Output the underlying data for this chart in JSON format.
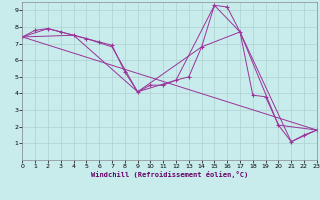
{
  "xlabel": "Windchill (Refroidissement éolien,°C)",
  "bg_color": "#c8ecec",
  "grid_color": "#b0d0d0",
  "line_color": "#993399",
  "xlim": [
    0,
    23
  ],
  "ylim": [
    0,
    9.5
  ],
  "xticks": [
    0,
    1,
    2,
    3,
    4,
    5,
    6,
    7,
    8,
    9,
    10,
    11,
    12,
    13,
    14,
    15,
    16,
    17,
    18,
    19,
    20,
    21,
    22,
    23
  ],
  "yticks": [
    1,
    2,
    3,
    4,
    5,
    6,
    7,
    8,
    9
  ],
  "series": [
    [
      0,
      7.4
    ],
    [
      1,
      7.8
    ],
    [
      2,
      7.9
    ],
    [
      3,
      7.7
    ],
    [
      4,
      7.5
    ],
    [
      5,
      7.3
    ],
    [
      6,
      7.1
    ],
    [
      7,
      6.9
    ],
    [
      8,
      5.3
    ],
    [
      9,
      4.1
    ],
    [
      10,
      4.5
    ],
    [
      11,
      4.5
    ],
    [
      12,
      4.8
    ],
    [
      13,
      5.0
    ],
    [
      14,
      6.8
    ],
    [
      15,
      9.3
    ],
    [
      16,
      9.2
    ],
    [
      17,
      7.7
    ],
    [
      18,
      3.9
    ],
    [
      19,
      3.8
    ],
    [
      20,
      2.1
    ],
    [
      21,
      1.1
    ],
    [
      22,
      1.5
    ],
    [
      23,
      1.8
    ]
  ],
  "line2": [
    [
      0,
      7.4
    ],
    [
      2,
      7.9
    ],
    [
      5,
      7.3
    ],
    [
      7,
      6.8
    ],
    [
      9,
      4.1
    ],
    [
      12,
      4.8
    ],
    [
      15,
      9.3
    ],
    [
      17,
      7.7
    ],
    [
      20,
      2.1
    ],
    [
      23,
      1.8
    ]
  ],
  "line3": [
    [
      0,
      7.4
    ],
    [
      4,
      7.5
    ],
    [
      9,
      4.1
    ],
    [
      14,
      6.8
    ],
    [
      17,
      7.7
    ],
    [
      21,
      1.1
    ],
    [
      23,
      1.8
    ]
  ],
  "line4": [
    [
      0,
      7.4
    ],
    [
      23,
      1.8
    ]
  ]
}
